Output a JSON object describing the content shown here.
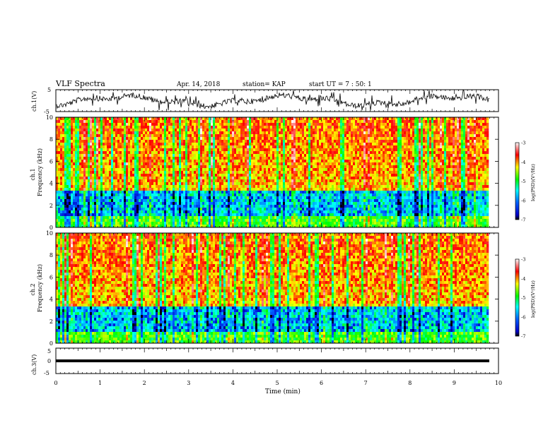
{
  "header": {
    "title": "VLF Spectra",
    "date": "Apr. 14, 2018",
    "station": "station= KAP",
    "start": "start UT =  7 : 50: 1"
  },
  "chart_data": [
    {
      "name": "ch1-waveform",
      "type": "line",
      "ylabel": "ch.1(V)",
      "ylim": [
        -5,
        5
      ],
      "y_ticks": [
        "5",
        "-5"
      ],
      "xlim": [
        0,
        10
      ],
      "description_values": "noisy waveform roughly between -5 and 5 V"
    },
    {
      "name": "ch1-spectrogram",
      "type": "heatmap",
      "ylabel": "ch.1\nFrequency (kHz)",
      "ylim": [
        0,
        10
      ],
      "y_ticks": [
        "0",
        "2",
        "4",
        "6",
        "8",
        "10"
      ],
      "xlim": [
        0,
        10
      ],
      "colorbar": {
        "label": "log(PSD)(V²/Hz)",
        "range": [
          -7,
          -3
        ],
        "ticks": [
          "-3",
          "-4",
          "-5",
          "-6",
          "-7"
        ]
      }
    },
    {
      "name": "ch2-spectrogram",
      "type": "heatmap",
      "ylabel": "ch.2\nFrequency (kHz)",
      "ylim": [
        0,
        10
      ],
      "y_ticks": [
        "0",
        "2",
        "4",
        "6",
        "8",
        "10"
      ],
      "xlim": [
        0,
        10
      ],
      "colorbar": {
        "label": "log(PSD)(V²/Hz)",
        "range": [
          -7,
          -3
        ],
        "ticks": [
          "-3",
          "-4",
          "-5",
          "-6",
          "-7"
        ]
      }
    },
    {
      "name": "ch3-waveform",
      "type": "line",
      "ylabel": "ch.3(V)",
      "ylim": [
        -5,
        5
      ],
      "y_ticks": [
        "5",
        "0",
        "-5"
      ],
      "xlim": [
        0,
        10
      ],
      "x": [
        0,
        9.8
      ],
      "y": [
        0,
        0
      ]
    }
  ],
  "x_axis": {
    "label": "Time (min)",
    "ticks": [
      "0",
      "1",
      "2",
      "3",
      "4",
      "5",
      "6",
      "7",
      "8",
      "9",
      "10"
    ]
  },
  "colors": {
    "colormap": [
      "#000000",
      "#0000ff",
      "#00ffff",
      "#00ff00",
      "#ffff00",
      "#ff0000",
      "#ffffff"
    ]
  }
}
